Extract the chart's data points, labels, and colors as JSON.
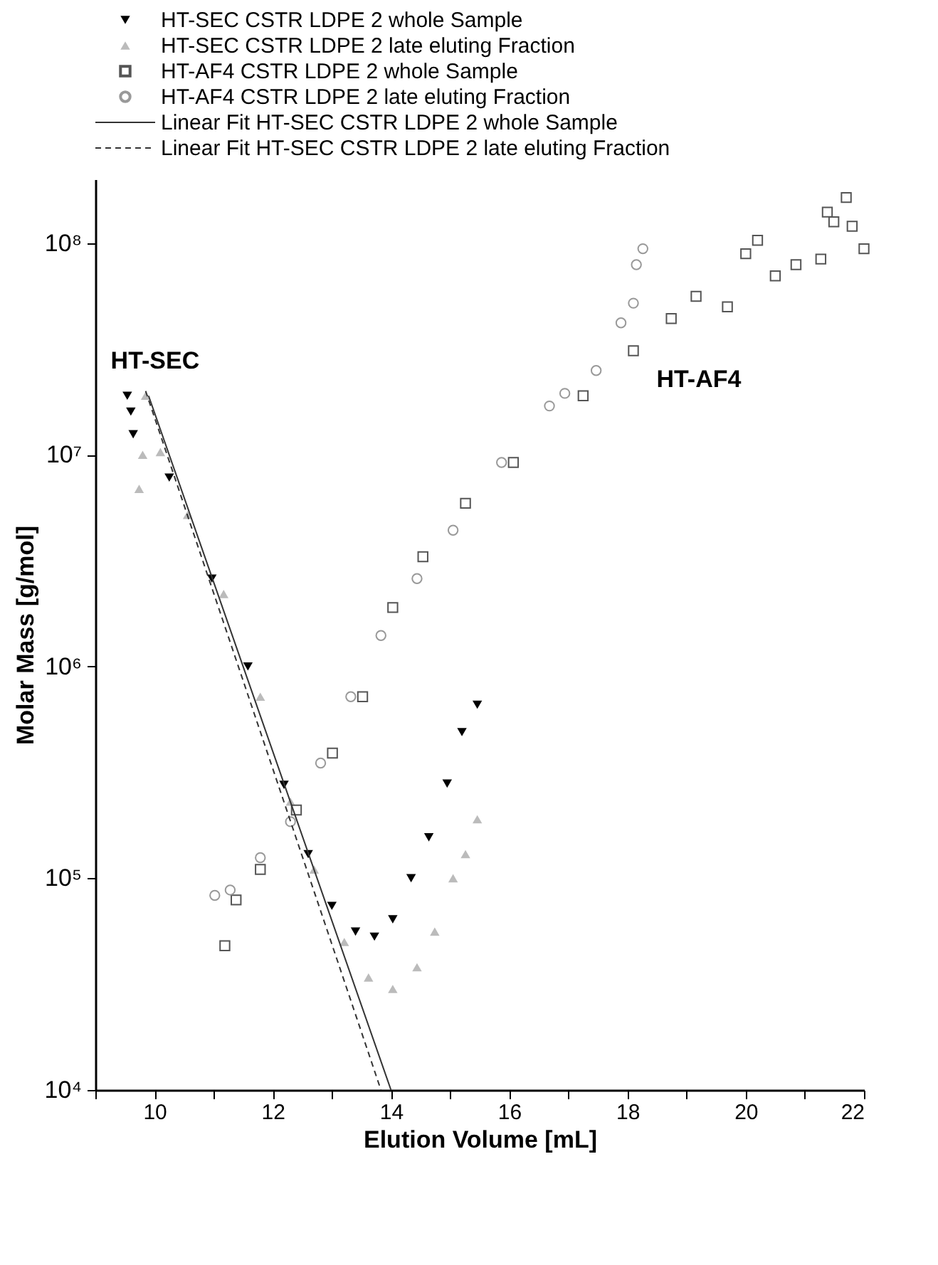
{
  "chart_data": {
    "type": "scatter",
    "xlabel": "Elution Volume [mL]",
    "ylabel": "Molar Mass [g/mol]",
    "xlim": [
      9,
      22
    ],
    "ylim": [
      10000,
      200000000
    ],
    "log": "y",
    "grid": false,
    "legend": "top",
    "xticks": [
      {
        "value": 9,
        "label": null
      },
      10,
      {
        "value": 11,
        "label": null
      },
      12,
      {
        "value": 13,
        "label": null
      },
      14,
      {
        "value": 15,
        "label": null
      },
      16,
      {
        "value": 17,
        "label": null
      },
      18,
      {
        "value": 19,
        "label": null
      },
      20,
      {
        "value": 21,
        "label": null
      },
      22
    ],
    "yticks": [
      {
        "value": 10000,
        "label": "10⁴"
      },
      {
        "value": 100000,
        "label": "10⁵"
      },
      {
        "value": 1000000,
        "label": "10⁶"
      },
      {
        "value": 10000000,
        "label": "10⁷"
      },
      {
        "value": 100000000,
        "label": "10⁸"
      }
    ],
    "annotations": [
      "HT-SEC",
      "HT-AF4"
    ],
    "series": [
      {
        "name": "HT-SEC CSTR LDPE 2 whole Sample",
        "color": "#000000",
        "marker": "triangle-down",
        "x": [
          9.54,
          9.6,
          9.64,
          10.25,
          10.97,
          11.58,
          12.19,
          12.6,
          13.0,
          13.4,
          13.72,
          14.03,
          14.34,
          14.64,
          14.95,
          15.2,
          15.46
        ],
        "values": [
          19000000,
          16000000,
          12500000,
          7800000,
          2600000,
          1000000,
          276000,
          130000,
          74000,
          56000,
          53000,
          64000,
          100000,
          156000,
          280000,
          490000,
          660000
        ]
      },
      {
        "name": "HT-SEC CSTR LDPE 2 late eluting Fraction",
        "color": "#bbbbbb",
        "marker": "triangle",
        "x": [
          9.74,
          9.8,
          9.85,
          10.1,
          10.56,
          11.17,
          11.79,
          12.3,
          12.7,
          13.21,
          13.62,
          14.03,
          14.44,
          14.74,
          15.05,
          15.26,
          15.46
        ],
        "values": [
          6900000,
          10000000,
          19000000,
          10300000,
          5200000,
          2200000,
          720000,
          230000,
          110000,
          50000,
          34000,
          30000,
          38000,
          56000,
          100000,
          130000,
          190000
        ]
      },
      {
        "name": "HT-AF4 CSTR LDPE 2 whole Sample",
        "color": "#555555",
        "marker": "square",
        "x": [
          11.19,
          11.38,
          11.79,
          12.4,
          13.01,
          13.52,
          14.03,
          14.54,
          15.26,
          16.07,
          17.25,
          18.1,
          18.74,
          19.16,
          19.69,
          20.0,
          20.2,
          20.5,
          20.85,
          21.27,
          21.38,
          21.49,
          21.7,
          21.8,
          22.0
        ],
        "values": [
          48000,
          79000,
          110000,
          210000,
          390000,
          720000,
          1900000,
          3300000,
          5900000,
          9200000,
          19000000,
          31000000,
          44000000,
          56000000,
          50000000,
          89000000,
          103000000,
          70000000,
          79000000,
          84000000,
          140000000,
          126000000,
          164000000,
          120000000,
          94000000
        ]
      },
      {
        "name": "HT-AF4 CSTR LDPE 2 late eluting Fraction",
        "color": "#999999",
        "marker": "circle",
        "x": [
          11.02,
          11.28,
          11.79,
          12.3,
          12.81,
          13.32,
          13.83,
          14.44,
          15.05,
          15.87,
          16.68,
          16.94,
          17.47,
          17.89,
          18.1,
          18.15,
          18.26
        ],
        "values": [
          83000,
          88000,
          125000,
          185000,
          350000,
          720000,
          1400000,
          2600000,
          4400000,
          9200000,
          17000000,
          19500000,
          25000000,
          42000000,
          52000000,
          79000000,
          94000000
        ]
      },
      {
        "name": "Linear Fit HT-SEC CSTR LDPE 2 whole Sample",
        "type": "line",
        "color": "#333333",
        "line_style": "solid",
        "x": [
          9.9,
          14.0
        ],
        "values": [
          19000000,
          10000
        ]
      },
      {
        "name": "Linear Fit HT-SEC CSTR LDPE 2 late eluting Fraction",
        "type": "line",
        "color": "#333333",
        "line_style": "dashed",
        "x": [
          9.85,
          13.83
        ],
        "values": [
          20000000,
          10000
        ]
      }
    ]
  }
}
